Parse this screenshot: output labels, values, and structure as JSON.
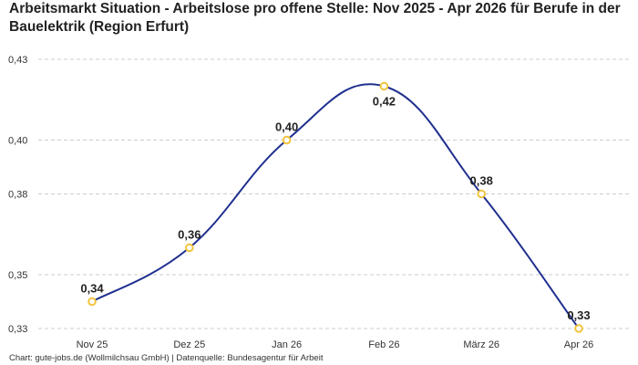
{
  "chart_data": {
    "type": "line",
    "title": "Arbeitsmarkt Situation - Arbeitslose pro offene Stelle: Nov 2025 - Apr 2026 für Berufe in der Bauelektrik (Region Erfurt)",
    "categories": [
      "Nov 25",
      "Dez 25",
      "Jan 26",
      "Feb 26",
      "März 26",
      "Apr 26"
    ],
    "series": [
      {
        "values": [
          0.34,
          0.36,
          0.4,
          0.42,
          0.38,
          0.33
        ]
      }
    ],
    "data_labels": [
      "0,34",
      "0,36",
      "0,40",
      "0,42",
      "0,38",
      "0,33"
    ],
    "yticks": [
      {
        "value": 0.33,
        "label": "0,33"
      },
      {
        "value": 0.35,
        "label": "0,35"
      },
      {
        "value": 0.38,
        "label": "0,38"
      },
      {
        "value": 0.4,
        "label": "0,40"
      },
      {
        "value": 0.43,
        "label": "0,43"
      }
    ],
    "ylim": [
      0.33,
      0.43
    ],
    "xlabel": "",
    "ylabel": "",
    "grid": true,
    "line_color": "#1f2f8f",
    "marker_color": "#f0c43c",
    "grid_color": "#cccccc"
  },
  "footer": "Chart: gute-jobs.de (Wollmilchsau GmbH) | Datenquelle: Bundesagentur für Arbeit"
}
